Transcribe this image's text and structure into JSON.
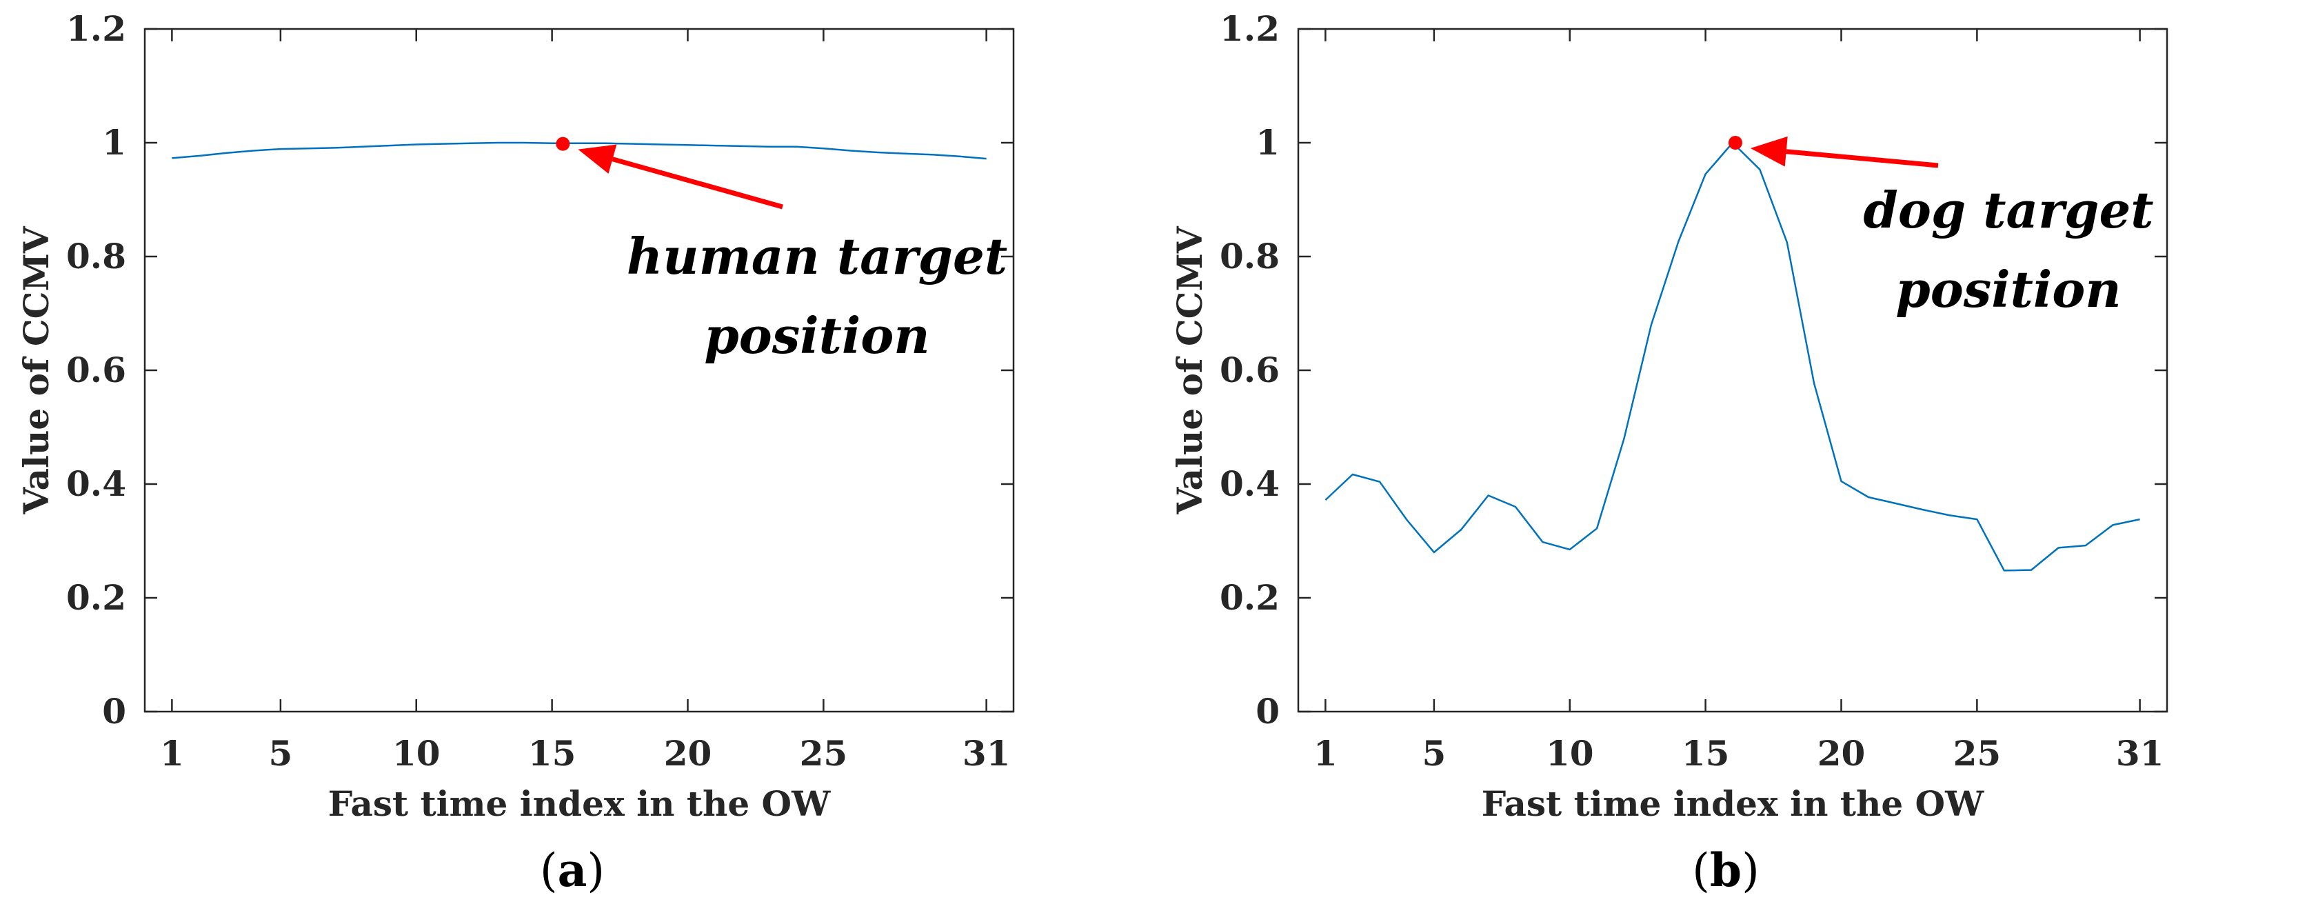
{
  "chart_data": [
    {
      "type": "line",
      "panel_label": "a",
      "xlabel": "Fast time index in the OW",
      "ylabel": "Value of CCMV",
      "xlim": [
        0,
        32
      ],
      "ylim": [
        0,
        1.2
      ],
      "xticks": [
        1,
        5,
        10,
        15,
        20,
        25,
        31
      ],
      "yticks": [
        0,
        0.2,
        0.4,
        0.6,
        0.8,
        1,
        1.2
      ],
      "grid": false,
      "line_color": "#0072BD",
      "marker_color": "#FF0000",
      "arrow_color": "#FF0000",
      "x": [
        1,
        2,
        3,
        4,
        5,
        6,
        7,
        8,
        9,
        10,
        11,
        12,
        13,
        14,
        15,
        16,
        17,
        18,
        19,
        20,
        21,
        22,
        23,
        24,
        25,
        26,
        27,
        28,
        29,
        30,
        31
      ],
      "y": [
        0.973,
        0.977,
        0.982,
        0.986,
        0.989,
        0.99,
        0.991,
        0.993,
        0.995,
        0.997,
        0.998,
        0.999,
        1.0,
        1.0,
        0.999,
        0.999,
        0.999,
        0.998,
        0.997,
        0.996,
        0.995,
        0.994,
        0.993,
        0.993,
        0.99,
        0.986,
        0.983,
        0.981,
        0.979,
        0.976,
        0.972
      ],
      "marker": {
        "x": 15.4,
        "y": 0.998
      },
      "annotation": {
        "lines": [
          "human target",
          "position"
        ]
      }
    },
    {
      "type": "line",
      "panel_label": "b",
      "xlabel": "Fast time index in the OW",
      "ylabel": "Value of CCMV",
      "xlim": [
        0,
        32
      ],
      "ylim": [
        0,
        1.2
      ],
      "xticks": [
        1,
        5,
        10,
        15,
        20,
        25,
        31
      ],
      "yticks": [
        0,
        0.2,
        0.4,
        0.6,
        0.8,
        1,
        1.2
      ],
      "grid": false,
      "line_color": "#0072BD",
      "marker_color": "#FF0000",
      "arrow_color": "#FF0000",
      "x": [
        1,
        2,
        3,
        4,
        5,
        6,
        7,
        8,
        9,
        10,
        11,
        12,
        13,
        14,
        15,
        16,
        17,
        18,
        19,
        20,
        21,
        22,
        23,
        24,
        25,
        26,
        27,
        28,
        29,
        30,
        31
      ],
      "y": [
        0.372,
        0.417,
        0.404,
        0.337,
        0.28,
        0.32,
        0.38,
        0.36,
        0.298,
        0.285,
        0.322,
        0.48,
        0.68,
        0.826,
        0.945,
        1.0,
        0.953,
        0.825,
        0.577,
        0.405,
        0.377,
        0.366,
        0.355,
        0.345,
        0.338,
        0.248,
        0.249,
        0.288,
        0.292,
        0.328,
        0.338
      ],
      "marker": {
        "x": 16.1,
        "y": 1.0
      },
      "annotation": {
        "lines": [
          "dog target",
          "position"
        ]
      }
    }
  ]
}
